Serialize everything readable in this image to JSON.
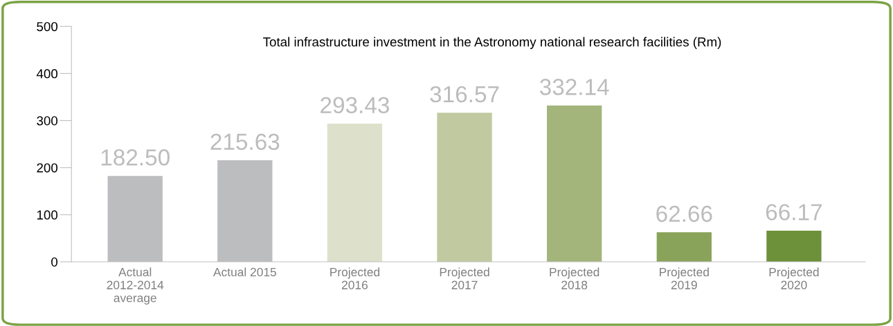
{
  "chart_data": {
    "type": "bar",
    "title": "Total infrastructure investment in the Astronomy national research facilities (Rm)",
    "categories": [
      "Actual\n2012-2014\naverage",
      "Actual 2015",
      "Projected\n2016",
      "Projected\n2017",
      "Projected\n2018",
      "Projected\n2019",
      "Projected\n2020"
    ],
    "values": [
      182.5,
      215.63,
      293.43,
      316.57,
      332.14,
      62.66,
      66.17
    ],
    "value_labels": [
      "182.50",
      "215.63",
      "293.43",
      "316.57",
      "332.14",
      "62.66",
      "66.17"
    ],
    "colors": [
      "#bcbdbf",
      "#bcbdbf",
      "#dde1cb",
      "#c0c9a0",
      "#a3b57a",
      "#8aa35a",
      "#6d913a"
    ],
    "ylim": [
      0,
      500
    ],
    "yticks": [
      0,
      100,
      200,
      300,
      400,
      500
    ],
    "grid": false,
    "legend": false
  }
}
